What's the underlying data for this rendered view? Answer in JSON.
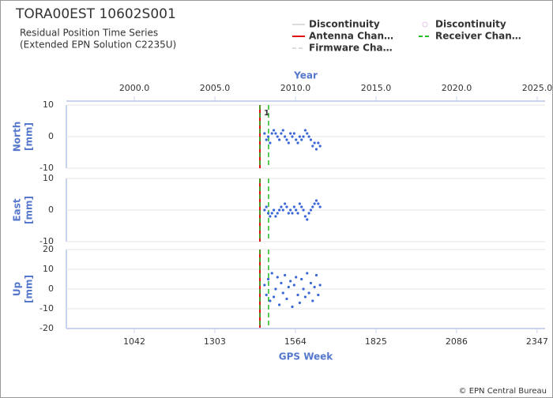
{
  "chart_data": {
    "type": "scatter",
    "title": "TORA00EST 10602S001",
    "subtitle": [
      "Residual Position Time Series",
      "(Extended EPN Solution C2235U)"
    ],
    "legend": [
      {
        "name": "Discontinuity",
        "color": "#dddddd",
        "symbol": "line",
        "dimmed": true
      },
      {
        "name": "Discontinuity",
        "color": "#e8c8e8",
        "symbol": "dot",
        "dimmed": false
      },
      {
        "name": "Antenna Chan…",
        "color": "#dd1111",
        "symbol": "line",
        "dimmed": false
      },
      {
        "name": "Receiver Chan…",
        "color": "#22bb22",
        "symbol": "dash",
        "dimmed": false
      },
      {
        "name": "Firmware Cha…",
        "color": "#dddddd",
        "symbol": "dash",
        "dimmed": true
      }
    ],
    "x2label": "Year",
    "x2lim": [
      1995.78,
      2025.49
    ],
    "x2ticks": [
      {
        "value": 2000,
        "label": "2000.0"
      },
      {
        "value": 2005,
        "label": "2005.0"
      },
      {
        "value": 2010,
        "label": "2010.0"
      },
      {
        "value": 2015,
        "label": "2015.0"
      },
      {
        "value": 2020,
        "label": "2020.0"
      },
      {
        "value": 2025,
        "label": "2025.0"
      }
    ],
    "xlabel": "GPS Week",
    "xlim": [
      822,
      2373
    ],
    "xticks": [
      1042,
      1303,
      1564,
      1825,
      2086,
      2347
    ],
    "antenna_changes": [
      1449
    ],
    "receiver_changes": [
      1449,
      1477
    ],
    "annotation": "1",
    "color": "#3a66d6",
    "x": [
      1464,
      1470,
      1476,
      1482,
      1488,
      1494,
      1500,
      1506,
      1512,
      1518,
      1524,
      1530,
      1536,
      1542,
      1548,
      1554,
      1560,
      1566,
      1572,
      1578,
      1584,
      1590,
      1596,
      1602,
      1608,
      1614,
      1620,
      1626,
      1632,
      1638,
      1644
    ],
    "panels": [
      {
        "ylabel": [
          "North",
          "[mm]"
        ],
        "ylim": [
          -10,
          10
        ],
        "yticks": [
          -10,
          0,
          10
        ],
        "values": [
          1,
          -1,
          0,
          -2,
          1,
          2,
          1,
          0,
          -1,
          1,
          2,
          0,
          -1,
          -2,
          1,
          0,
          1,
          -1,
          -2,
          0,
          -1,
          0,
          2,
          1,
          0,
          -1,
          -3,
          -2,
          -4,
          -2,
          -3
        ]
      },
      {
        "ylabel": [
          "East",
          "[mm]"
        ],
        "ylim": [
          -10,
          10
        ],
        "yticks": [
          -10,
          0,
          10
        ],
        "values": [
          0,
          1,
          -1,
          -2,
          -1,
          0,
          -2,
          -1,
          0,
          1,
          0,
          2,
          1,
          -1,
          0,
          -1,
          1,
          0,
          -1,
          2,
          1,
          0,
          -2,
          -3,
          -1,
          0,
          1,
          2,
          3,
          2,
          1
        ]
      },
      {
        "ylabel": [
          "Up",
          "[mm]"
        ],
        "ylim": [
          -20,
          20
        ],
        "yticks": [
          -20,
          -10,
          0,
          10,
          20
        ],
        "values": [
          2,
          -3,
          5,
          -6,
          8,
          -4,
          0,
          6,
          -8,
          3,
          -2,
          7,
          -5,
          1,
          4,
          -9,
          2,
          6,
          -3,
          -7,
          5,
          0,
          -4,
          8,
          -2,
          3,
          -6,
          1,
          7,
          -3,
          2
        ]
      }
    ],
    "credit": "© EPN Central Bureau"
  }
}
